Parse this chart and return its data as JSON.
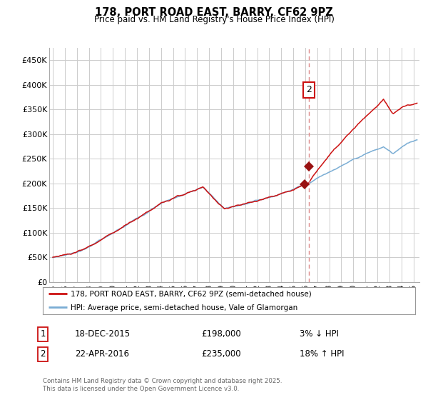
{
  "title": "178, PORT ROAD EAST, BARRY, CF62 9PZ",
  "subtitle": "Price paid vs. HM Land Registry's House Price Index (HPI)",
  "legend_line1": "178, PORT ROAD EAST, BARRY, CF62 9PZ (semi-detached house)",
  "legend_line2": "HPI: Average price, semi-detached house, Vale of Glamorgan",
  "footer": "Contains HM Land Registry data © Crown copyright and database right 2025.\nThis data is licensed under the Open Government Licence v3.0.",
  "transaction1_label": "1",
  "transaction1_date": "18-DEC-2015",
  "transaction1_price": "£198,000",
  "transaction1_hpi": "3% ↓ HPI",
  "transaction2_label": "2",
  "transaction2_date": "22-APR-2016",
  "transaction2_price": "£235,000",
  "transaction2_hpi": "18% ↑ HPI",
  "hpi_line_color": "#7aadd4",
  "price_line_color": "#cc1111",
  "marker_color": "#991111",
  "dashed_line_color": "#dd8888",
  "grid_color": "#cccccc",
  "background_color": "#ffffff",
  "ylim": [
    0,
    475000
  ],
  "yticks": [
    0,
    50000,
    100000,
    150000,
    200000,
    250000,
    300000,
    350000,
    400000,
    450000
  ],
  "ytick_labels": [
    "£0",
    "£50K",
    "£100K",
    "£150K",
    "£200K",
    "£250K",
    "£300K",
    "£350K",
    "£400K",
    "£450K"
  ],
  "xlim_start": 1994.7,
  "xlim_end": 2025.5,
  "transaction1_year": 2015.96,
  "transaction2_year": 2016.31,
  "transaction1_value": 198000,
  "transaction2_value": 235000,
  "annotation2_value": 390000
}
